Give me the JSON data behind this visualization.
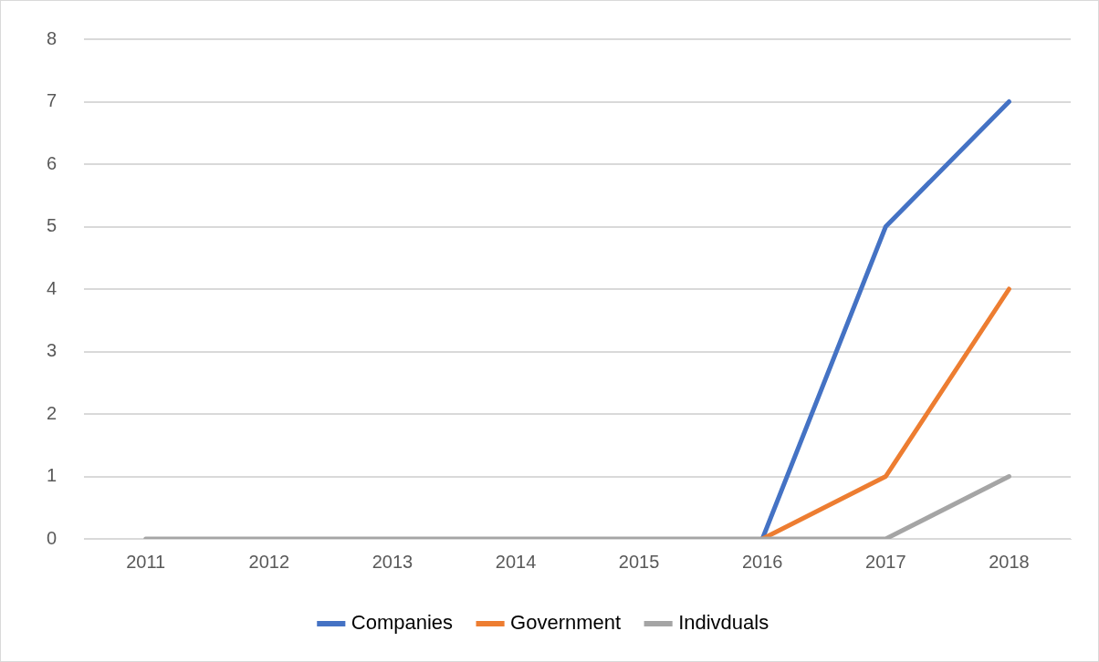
{
  "chart_data": {
    "type": "line",
    "categories": [
      "2011",
      "2012",
      "2013",
      "2014",
      "2015",
      "2016",
      "2017",
      "2018"
    ],
    "series": [
      {
        "name": "Companies",
        "color": "#4472c4",
        "values": [
          null,
          null,
          null,
          null,
          null,
          0,
          5,
          7
        ]
      },
      {
        "name": "Government",
        "color": "#ed7d31",
        "values": [
          null,
          null,
          null,
          null,
          null,
          0,
          1,
          4
        ]
      },
      {
        "name": "Indivduals",
        "color": "#a5a5a5",
        "values": [
          0,
          0,
          0,
          0,
          0,
          0,
          0,
          1
        ]
      }
    ],
    "ylim": [
      0,
      8
    ],
    "yticks": [
      0,
      1,
      2,
      3,
      4,
      5,
      6,
      7,
      8
    ],
    "grid": "y",
    "legend": "bottom",
    "marker": "none",
    "line_style": "solid"
  }
}
